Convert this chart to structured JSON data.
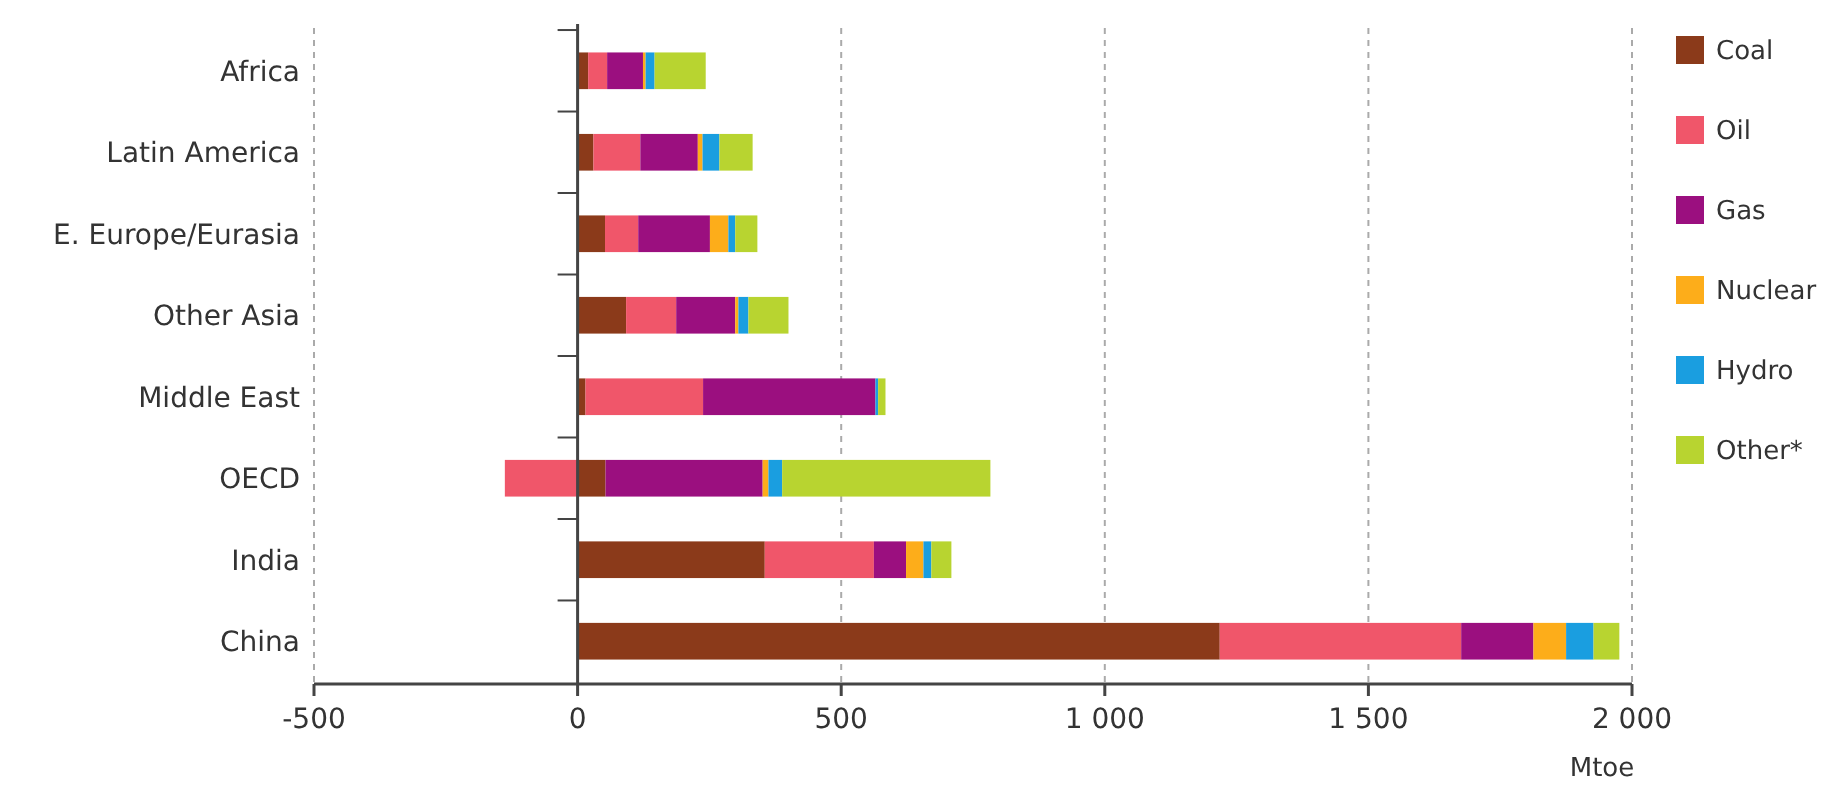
{
  "chart_data": {
    "type": "bar",
    "orientation": "horizontal",
    "stacked": true,
    "xlabel": "Mtoe",
    "categories": [
      "Africa",
      "Latin America",
      "E. Europe/Eurasia",
      "Other Asia",
      "Middle East",
      "OECD",
      "India",
      "China"
    ],
    "series": [
      {
        "name": "Coal",
        "color": "#8b3a1a",
        "values": [
          20,
          30,
          52,
          92,
          15,
          53,
          355,
          1218
        ]
      },
      {
        "name": "Oil",
        "color": "#f0566a",
        "values": [
          36,
          89,
          63,
          95,
          223,
          -138,
          207,
          458
        ]
      },
      {
        "name": "Gas",
        "color": "#9b0f7f",
        "values": [
          68,
          109,
          136,
          112,
          327,
          298,
          61,
          137
        ]
      },
      {
        "name": "Nuclear",
        "color": "#fdad1a",
        "values": [
          5,
          9,
          35,
          6,
          0,
          11,
          33,
          62
        ]
      },
      {
        "name": "Hydro",
        "color": "#1a9ee0",
        "values": [
          17,
          32,
          13,
          19,
          5,
          26,
          15,
          52
        ]
      },
      {
        "name": "Other*",
        "color": "#b8d430",
        "values": [
          97,
          63,
          42,
          76,
          14,
          395,
          38,
          49
        ]
      }
    ],
    "xlim": [
      -500,
      2000
    ],
    "xticks": [
      -500,
      0,
      500,
      {
        "value": 1000,
        "label": "1 000"
      },
      {
        "value": 1500,
        "label": "1 500"
      },
      {
        "value": 2000,
        "label": "2 000"
      }
    ],
    "grid": "x",
    "legend": "right"
  }
}
